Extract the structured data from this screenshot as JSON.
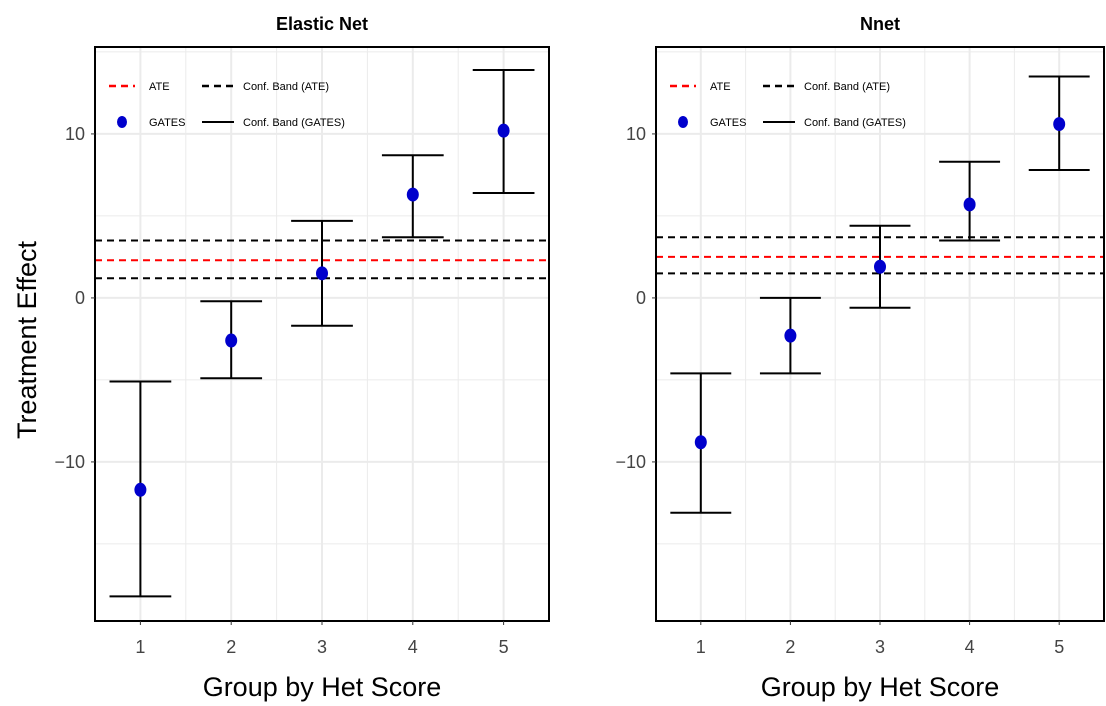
{
  "figure": {
    "y_axis_title": "Treatment Effect"
  },
  "legend": {
    "ate": "ATE",
    "conf_band_ate": "Conf. Band (ATE)",
    "gates": "GATES",
    "conf_band_gates": "Conf. Band (GATES)"
  },
  "colors": {
    "ate": "#ff0000",
    "conf_band": "#000000",
    "gates_point": "#0000cc",
    "grid": "#ebebeb"
  },
  "chart_data": [
    {
      "type": "scatter",
      "title": "Elastic Net",
      "xlabel": "Group by Het Score",
      "ylabel": "Treatment Effect",
      "categories": [
        "1",
        "2",
        "3",
        "4",
        "5"
      ],
      "y_ticks": [
        -10,
        0,
        10
      ],
      "ylim": [
        -19.7,
        15.3
      ],
      "grid": true,
      "legend_position": "top-left",
      "series": [
        {
          "name": "GATES",
          "values": [
            -11.7,
            -2.6,
            1.5,
            6.3,
            10.2
          ],
          "lower": [
            -18.2,
            -4.9,
            -1.7,
            3.7,
            6.4
          ],
          "upper": [
            -5.1,
            -0.2,
            4.7,
            8.7,
            13.9
          ]
        }
      ],
      "ate": 2.3,
      "ate_band": [
        1.2,
        3.5
      ]
    },
    {
      "type": "scatter",
      "title": "Nnet",
      "xlabel": "Group by Het Score",
      "ylabel": "",
      "categories": [
        "1",
        "2",
        "3",
        "4",
        "5"
      ],
      "y_ticks": [
        -10,
        0,
        10
      ],
      "ylim": [
        -19.7,
        15.3
      ],
      "grid": true,
      "legend_position": "top-left",
      "series": [
        {
          "name": "GATES",
          "values": [
            -8.8,
            -2.3,
            1.9,
            5.7,
            10.6
          ],
          "lower": [
            -13.1,
            -4.6,
            -0.6,
            3.5,
            7.8
          ],
          "upper": [
            -4.6,
            0.0,
            4.4,
            8.3,
            13.5
          ]
        }
      ],
      "ate": 2.5,
      "ate_band": [
        1.5,
        3.7
      ]
    }
  ]
}
